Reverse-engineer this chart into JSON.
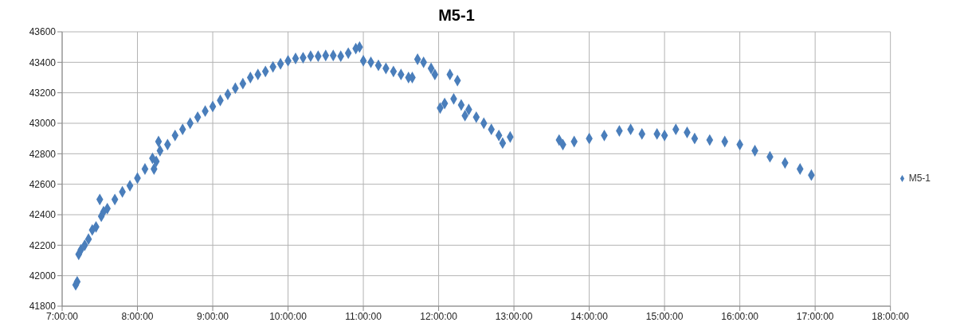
{
  "chart_data": {
    "type": "scatter",
    "title": "M5-1",
    "xlim": [
      7,
      18
    ],
    "xticks": [
      {
        "value": 7,
        "label": "7:00:00"
      },
      {
        "value": 8,
        "label": "8:00:00"
      },
      {
        "value": 9,
        "label": "9:00:00"
      },
      {
        "value": 10,
        "label": "10:00:00"
      },
      {
        "value": 11,
        "label": "11:00:00"
      },
      {
        "value": 12,
        "label": "12:00:00"
      },
      {
        "value": 13,
        "label": "13:00:00"
      },
      {
        "value": 14,
        "label": "14:00:00"
      },
      {
        "value": 15,
        "label": "15:00:00"
      },
      {
        "value": 16,
        "label": "16:00:00"
      },
      {
        "value": 17,
        "label": "17:00:00"
      },
      {
        "value": 18,
        "label": "18:00:00"
      }
    ],
    "ylim": [
      41800,
      43600
    ],
    "yticks": [
      41800,
      42000,
      42200,
      42400,
      42600,
      42800,
      43000,
      43200,
      43400,
      43600
    ],
    "grid": true,
    "legend": "right",
    "marker": "diamond",
    "series": [
      {
        "name": "M5-1",
        "color": "#4a7ebb",
        "x": [
          7.18,
          7.2,
          7.22,
          7.25,
          7.3,
          7.35,
          7.4,
          7.45,
          7.5,
          7.52,
          7.55,
          7.6,
          7.7,
          7.8,
          7.9,
          8.0,
          8.1,
          8.2,
          8.22,
          8.25,
          8.28,
          8.3,
          8.4,
          8.5,
          8.6,
          8.7,
          8.8,
          8.9,
          9.0,
          9.1,
          9.2,
          9.3,
          9.4,
          9.5,
          9.6,
          9.7,
          9.8,
          9.9,
          10.0,
          10.1,
          10.2,
          10.3,
          10.4,
          10.5,
          10.6,
          10.7,
          10.8,
          10.9,
          10.95,
          11.0,
          11.1,
          11.2,
          11.3,
          11.4,
          11.5,
          11.6,
          11.65,
          11.72,
          11.8,
          11.9,
          11.95,
          12.02,
          12.08,
          12.15,
          12.25,
          12.2,
          12.3,
          12.35,
          12.4,
          12.5,
          12.6,
          12.7,
          12.8,
          12.85,
          12.95,
          13.6,
          13.65,
          13.8,
          14.0,
          14.2,
          14.4,
          14.55,
          14.7,
          14.9,
          15.0,
          15.15,
          15.3,
          15.4,
          15.6,
          15.8,
          16.0,
          16.2,
          16.4,
          16.6,
          16.8,
          16.95
        ],
        "values": [
          41940,
          41960,
          42140,
          42170,
          42200,
          42240,
          42300,
          42320,
          42500,
          42390,
          42420,
          42440,
          42500,
          42550,
          42590,
          42640,
          42700,
          42770,
          42700,
          42750,
          42880,
          42820,
          42860,
          42920,
          42960,
          43000,
          43040,
          43080,
          43110,
          43150,
          43190,
          43230,
          43260,
          43300,
          43320,
          43340,
          43370,
          43390,
          43410,
          43425,
          43430,
          43440,
          43440,
          43445,
          43445,
          43440,
          43460,
          43490,
          43500,
          43410,
          43400,
          43380,
          43360,
          43340,
          43320,
          43300,
          43300,
          43420,
          43400,
          43360,
          43320,
          43100,
          43130,
          43320,
          43280,
          43160,
          43120,
          43050,
          43090,
          43040,
          43000,
          42960,
          42920,
          42870,
          42910,
          42890,
          42860,
          42880,
          42900,
          42920,
          42950,
          42960,
          42930,
          42930,
          42920,
          42960,
          42940,
          42900,
          42890,
          42880,
          42860,
          42820,
          42780,
          42740,
          42700,
          42660
        ]
      }
    ]
  }
}
